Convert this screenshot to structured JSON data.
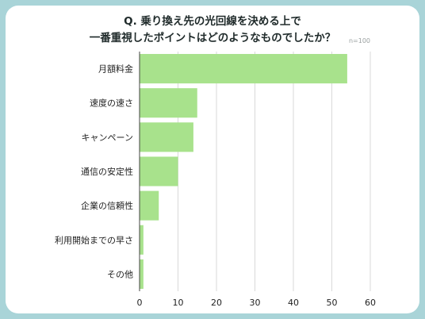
{
  "title_lines": [
    "Q. 乗り換え先の光回線を決める上で",
    "一番重視したポイントはどのようなものでしたか？"
  ],
  "note": "n=100",
  "colors": {
    "bar": "#a8e28c",
    "background": "#a9d4d8",
    "grid": "#d9d9d9",
    "axis": "#444444"
  },
  "chart_data": {
    "type": "bar",
    "orientation": "horizontal",
    "categories": [
      "月額料金",
      "速度の速さ",
      "キャンペーン",
      "通信の安定性",
      "企業の信頼性",
      "利用開始までの早さ",
      "その他"
    ],
    "values": [
      54,
      15,
      14,
      10,
      5,
      1,
      1
    ],
    "xlim": [
      0,
      60
    ],
    "xticks": [
      0,
      10,
      20,
      30,
      40,
      50,
      60
    ],
    "grid": true,
    "legend": "none"
  }
}
